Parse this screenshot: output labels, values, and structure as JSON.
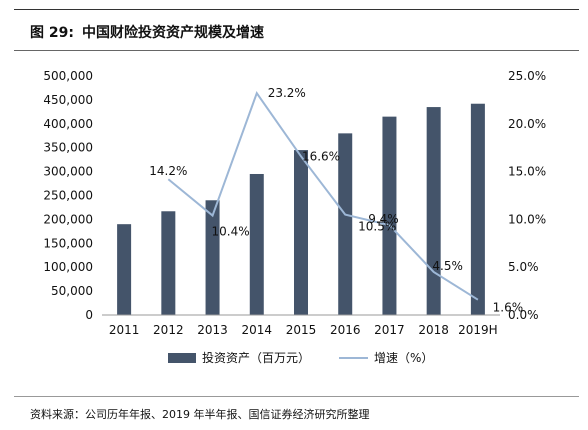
{
  "figure": {
    "number": "图 29:",
    "title": "中国财险投资资产规模及增速"
  },
  "source": "资料来源：公司历年年报、2019 年半年报、国信证券经济研究所整理",
  "colors": {
    "bar": "#44546a",
    "line": "#9db7d6"
  },
  "chart_data": {
    "type": "bar",
    "categories": [
      "2011",
      "2012",
      "2013",
      "2014",
      "2015",
      "2016",
      "2017",
      "2018",
      "2019H"
    ],
    "series": [
      {
        "name": "投资资产（百万元）",
        "type": "bar",
        "axis": "left",
        "values": [
          190000,
          217000,
          240000,
          295000,
          345000,
          380000,
          415000,
          435000,
          442000
        ]
      },
      {
        "name": "增速（%）",
        "type": "line",
        "axis": "right",
        "values": [
          null,
          14.2,
          10.4,
          23.2,
          16.6,
          10.5,
          9.4,
          4.5,
          1.6
        ],
        "labels": [
          "",
          "14.2%",
          "10.4%",
          "23.2%",
          "16.6%",
          "10.5%",
          "9.4%",
          "4.5%",
          "1.6%"
        ]
      }
    ],
    "y_left": {
      "min": 0,
      "max": 500000,
      "ticks": [
        "0",
        "50,000",
        "100,000",
        "150,000",
        "200,000",
        "250,000",
        "300,000",
        "350,000",
        "400,000",
        "450,000",
        "500,000"
      ]
    },
    "y_right": {
      "min": 0,
      "max": 25,
      "ticks": [
        "0.0%",
        "5.0%",
        "10.0%",
        "15.0%",
        "20.0%",
        "25.0%"
      ]
    },
    "legend": {
      "position": "bottom",
      "items": [
        "投资资产（百万元）",
        "增速（%）"
      ]
    },
    "grid": false
  }
}
